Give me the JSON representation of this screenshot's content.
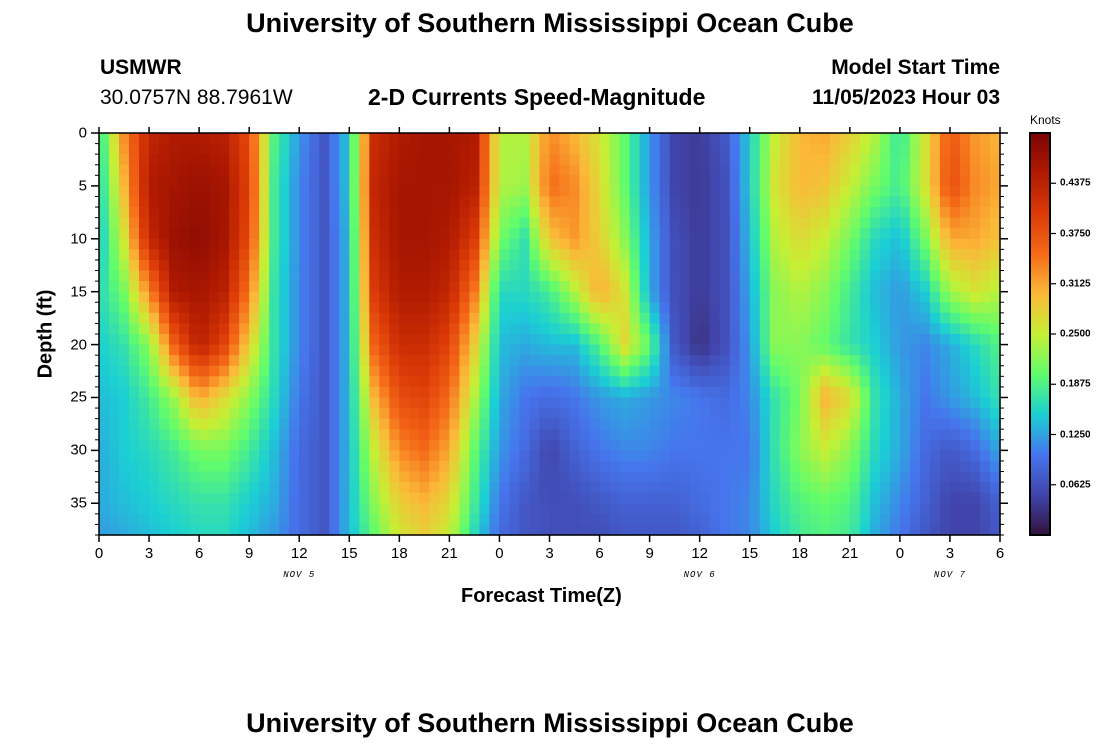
{
  "header": {
    "title": "University of Southern Mississippi Ocean Cube",
    "station": "USMWR",
    "coords": "30.0757N  88.7961W",
    "subtitle": "2-D Currents Speed-Magnitude",
    "model_label": "Model Start Time",
    "model_time": "11/05/2023 Hour 03"
  },
  "footer": {
    "title": "University of Southern Mississippi Ocean Cube"
  },
  "chart_data": {
    "type": "heatmap",
    "title": "2-D Currents Speed-Magnitude",
    "xlabel": "Forecast Time(Z)",
    "ylabel": "Depth (ft)",
    "x_range_hours": [
      0,
      54
    ],
    "y_range_ft": [
      0,
      38
    ],
    "x_tick_labels": [
      "0",
      "3",
      "6",
      "9",
      "12",
      "15",
      "18",
      "21",
      "0",
      "3",
      "6",
      "9",
      "12",
      "15",
      "18",
      "21",
      "0",
      "3",
      "6"
    ],
    "y_ticks": [
      0,
      5,
      10,
      15,
      20,
      25,
      30,
      35
    ],
    "date_labels": [
      {
        "label": "NOV 5",
        "hour": 12
      },
      {
        "label": "NOV 6",
        "hour": 36
      },
      {
        "label": "NOV 7",
        "hour": 51
      }
    ],
    "colorbar": {
      "title": "Knots",
      "min": 0.0,
      "max": 0.5,
      "tick_values": [
        0.0625,
        0.125,
        0.1875,
        0.25,
        0.3125,
        0.375,
        0.4375
      ],
      "tick_labels": [
        "0.0625",
        "0.1250",
        "0.1875",
        "0.2500",
        "0.3125",
        "0.3750",
        "0.4375"
      ]
    },
    "grid_cols_hours": [
      0,
      1.5,
      3,
      4.5,
      6,
      7.5,
      9,
      10.5,
      12,
      13.5,
      15,
      16.5,
      18,
      19.5,
      21,
      22.5,
      24,
      25.5,
      27,
      28.5,
      30,
      31.5,
      33,
      34.5,
      36,
      37.5,
      39,
      40.5,
      42,
      43.5,
      45,
      46.5,
      48,
      49.5,
      51,
      52.5,
      54
    ],
    "grid_rows_ft": [
      0,
      5,
      10,
      15,
      20,
      25,
      30,
      35,
      38
    ],
    "values_knots": [
      [
        0.16,
        0.33,
        0.43,
        0.45,
        0.45,
        0.44,
        0.38,
        0.19,
        0.12,
        0.07,
        0.15,
        0.42,
        0.45,
        0.46,
        0.46,
        0.45,
        0.24,
        0.24,
        0.33,
        0.3,
        0.26,
        0.2,
        0.12,
        0.05,
        0.04,
        0.07,
        0.15,
        0.25,
        0.3,
        0.31,
        0.28,
        0.24,
        0.17,
        0.26,
        0.37,
        0.32,
        0.3
      ],
      [
        0.15,
        0.3,
        0.45,
        0.46,
        0.47,
        0.46,
        0.39,
        0.18,
        0.11,
        0.07,
        0.15,
        0.43,
        0.46,
        0.46,
        0.46,
        0.44,
        0.24,
        0.23,
        0.35,
        0.33,
        0.27,
        0.2,
        0.12,
        0.05,
        0.04,
        0.06,
        0.15,
        0.26,
        0.3,
        0.29,
        0.25,
        0.21,
        0.18,
        0.26,
        0.38,
        0.33,
        0.31
      ],
      [
        0.14,
        0.26,
        0.43,
        0.47,
        0.48,
        0.46,
        0.38,
        0.18,
        0.11,
        0.07,
        0.14,
        0.42,
        0.46,
        0.46,
        0.45,
        0.4,
        0.21,
        0.17,
        0.29,
        0.32,
        0.28,
        0.22,
        0.13,
        0.06,
        0.04,
        0.06,
        0.14,
        0.24,
        0.27,
        0.25,
        0.21,
        0.16,
        0.14,
        0.21,
        0.31,
        0.31,
        0.29
      ],
      [
        0.16,
        0.21,
        0.33,
        0.45,
        0.46,
        0.44,
        0.34,
        0.17,
        0.11,
        0.07,
        0.14,
        0.4,
        0.45,
        0.45,
        0.43,
        0.34,
        0.16,
        0.16,
        0.18,
        0.24,
        0.31,
        0.26,
        0.13,
        0.06,
        0.04,
        0.06,
        0.13,
        0.22,
        0.24,
        0.22,
        0.18,
        0.14,
        0.12,
        0.15,
        0.23,
        0.26,
        0.24
      ],
      [
        0.15,
        0.17,
        0.22,
        0.36,
        0.44,
        0.39,
        0.28,
        0.17,
        0.11,
        0.07,
        0.14,
        0.36,
        0.42,
        0.42,
        0.39,
        0.28,
        0.14,
        0.13,
        0.14,
        0.14,
        0.19,
        0.27,
        0.2,
        0.07,
        0.03,
        0.06,
        0.12,
        0.22,
        0.22,
        0.2,
        0.17,
        0.15,
        0.12,
        0.11,
        0.13,
        0.16,
        0.19
      ],
      [
        0.14,
        0.15,
        0.18,
        0.23,
        0.31,
        0.27,
        0.22,
        0.16,
        0.1,
        0.07,
        0.14,
        0.3,
        0.38,
        0.39,
        0.35,
        0.24,
        0.13,
        0.1,
        0.09,
        0.1,
        0.12,
        0.13,
        0.12,
        0.11,
        0.1,
        0.09,
        0.11,
        0.17,
        0.21,
        0.3,
        0.27,
        0.17,
        0.13,
        0.1,
        0.12,
        0.14,
        0.17
      ],
      [
        0.13,
        0.15,
        0.16,
        0.18,
        0.21,
        0.21,
        0.18,
        0.14,
        0.09,
        0.07,
        0.14,
        0.25,
        0.33,
        0.35,
        0.31,
        0.2,
        0.12,
        0.09,
        0.05,
        0.08,
        0.1,
        0.11,
        0.11,
        0.1,
        0.1,
        0.1,
        0.1,
        0.17,
        0.22,
        0.25,
        0.22,
        0.16,
        0.13,
        0.09,
        0.07,
        0.09,
        0.13
      ],
      [
        0.13,
        0.14,
        0.15,
        0.16,
        0.17,
        0.17,
        0.15,
        0.13,
        0.09,
        0.07,
        0.14,
        0.22,
        0.28,
        0.3,
        0.27,
        0.18,
        0.1,
        0.07,
        0.06,
        0.06,
        0.07,
        0.08,
        0.08,
        0.08,
        0.09,
        0.1,
        0.11,
        0.16,
        0.19,
        0.2,
        0.19,
        0.14,
        0.11,
        0.08,
        0.05,
        0.05,
        0.08
      ],
      [
        0.12,
        0.13,
        0.14,
        0.15,
        0.16,
        0.16,
        0.14,
        0.12,
        0.09,
        0.07,
        0.14,
        0.2,
        0.26,
        0.28,
        0.25,
        0.16,
        0.09,
        0.07,
        0.06,
        0.06,
        0.06,
        0.07,
        0.07,
        0.07,
        0.08,
        0.1,
        0.11,
        0.15,
        0.18,
        0.19,
        0.18,
        0.13,
        0.1,
        0.07,
        0.05,
        0.05,
        0.07
      ]
    ]
  }
}
